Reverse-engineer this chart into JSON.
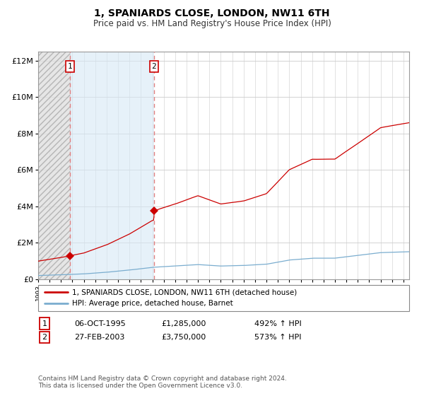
{
  "title": "1, SPANIARDS CLOSE, LONDON, NW11 6TH",
  "subtitle": "Price paid vs. HM Land Registry's House Price Index (HPI)",
  "legend_line1": "1, SPANIARDS CLOSE, LONDON, NW11 6TH (detached house)",
  "legend_line2": "HPI: Average price, detached house, Barnet",
  "footnote": "Contains HM Land Registry data © Crown copyright and database right 2024.\nThis data is licensed under the Open Government Licence v3.0.",
  "sale1_date": "06-OCT-1995",
  "sale1_price": 1285000,
  "sale1_label": "492% ↑ HPI",
  "sale1_year": 1995.77,
  "sale2_date": "27-FEB-2003",
  "sale2_price": 3750000,
  "sale2_label": "573% ↑ HPI",
  "sale2_year": 2003.15,
  "ylim_max": 12500000,
  "xlim_min": 1993.0,
  "xlim_max": 2025.5,
  "red_line_color": "#cc0000",
  "blue_line_color": "#7aadcf",
  "dashed_line_color": "#e08080",
  "background_color": "#ffffff",
  "grid_color": "#cccccc",
  "hatch_left_color": "#d8d8d8",
  "hatch_right_color": "#ddeeff"
}
